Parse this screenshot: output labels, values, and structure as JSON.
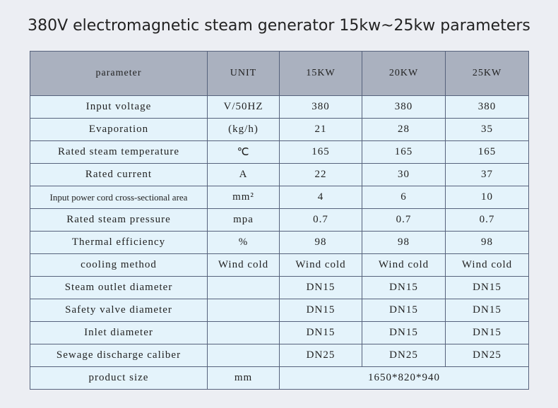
{
  "title": "380V electromagnetic steam generator 15kw~25kw parameters",
  "table": {
    "header": [
      "parameter",
      "UNIT",
      "15KW",
      "20KW",
      "25KW"
    ],
    "rows": [
      [
        "Input voltage",
        "V/50HZ",
        "380",
        "380",
        "380"
      ],
      [
        "Evaporation",
        "(kg/h)",
        "21",
        "28",
        "35"
      ],
      [
        "Rated steam temperature",
        "℃",
        "165",
        "165",
        "165"
      ],
      [
        "Rated current",
        "A",
        "22",
        "30",
        "37"
      ],
      [
        "Input power cord cross-sectional area",
        "mm²",
        "4",
        "6",
        "10"
      ],
      [
        "Rated steam pressure",
        "mpa",
        "0.7",
        "0.7",
        "0.7"
      ],
      [
        "Thermal efficiency",
        "%",
        "98",
        "98",
        "98"
      ],
      [
        "cooling method",
        "Wind cold",
        "Wind cold",
        "Wind cold",
        "Wind cold"
      ],
      [
        "Steam outlet diameter",
        null,
        "DN15",
        "DN15",
        "DN15"
      ],
      [
        "Safety valve diameter",
        null,
        "DN15",
        "DN15",
        "DN15"
      ],
      [
        "Inlet diameter",
        null,
        "DN15",
        "DN15",
        "DN15"
      ],
      [
        "Sewage discharge caliber",
        null,
        "DN25",
        "DN25",
        "DN25"
      ],
      [
        "product size",
        "mm",
        "1650*820*940"
      ]
    ]
  }
}
